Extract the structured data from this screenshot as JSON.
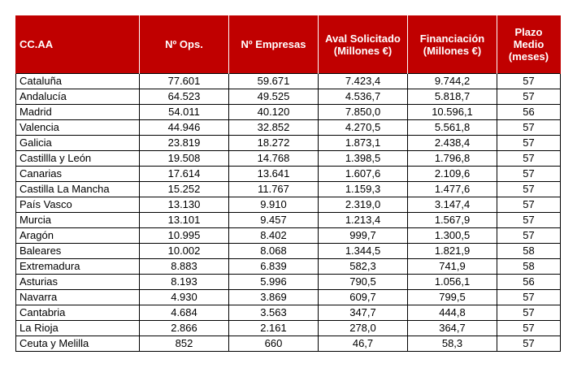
{
  "table": {
    "headers": [
      "CC.AA",
      "Nº Ops.",
      "Nº Empresas",
      "Aval Solicitado (Millones €)",
      "Financiación (Millones €)",
      "Plazo Medio (meses)"
    ],
    "rows": [
      [
        "Cataluña",
        "77.601",
        "59.671",
        "7.423,4",
        "9.744,2",
        "57"
      ],
      [
        "Andalucía",
        "64.523",
        "49.525",
        "4.536,7",
        "5.818,7",
        "57"
      ],
      [
        "Madrid",
        "54.011",
        "40.120",
        "7.850,0",
        "10.596,1",
        "56"
      ],
      [
        "Valencia",
        "44.946",
        "32.852",
        "4.270,5",
        "5.561,8",
        "57"
      ],
      [
        "Galicia",
        "23.819",
        "18.272",
        "1.873,1",
        "2.438,4",
        "57"
      ],
      [
        "Castillla y León",
        "19.508",
        "14.768",
        "1.398,5",
        "1.796,8",
        "57"
      ],
      [
        "Canarias",
        "17.614",
        "13.641",
        "1.607,6",
        "2.109,6",
        "57"
      ],
      [
        "Castilla La Mancha",
        "15.252",
        "11.767",
        "1.159,3",
        "1.477,6",
        "57"
      ],
      [
        "País Vasco",
        "13.130",
        "9.910",
        "2.319,0",
        "3.147,4",
        "57"
      ],
      [
        "Murcia",
        "13.101",
        "9.457",
        "1.213,4",
        "1.567,9",
        "57"
      ],
      [
        "Aragón",
        "10.995",
        "8.402",
        "999,7",
        "1.300,5",
        "57"
      ],
      [
        "Baleares",
        "10.002",
        "8.068",
        "1.344,5",
        "1.821,9",
        "58"
      ],
      [
        "Extremadura",
        "8.883",
        "6.839",
        "582,3",
        "741,9",
        "58"
      ],
      [
        "Asturias",
        "8.193",
        "5.996",
        "790,5",
        "1.056,1",
        "56"
      ],
      [
        "Navarra",
        "4.930",
        "3.869",
        "609,7",
        "799,5",
        "57"
      ],
      [
        "Cantabria",
        "4.684",
        "3.563",
        "347,7",
        "444,8",
        "57"
      ],
      [
        "La Rioja",
        "2.866",
        "2.161",
        "278,0",
        "364,7",
        "57"
      ],
      [
        "Ceuta y Melilla",
        "852",
        "660",
        "46,7",
        "58,3",
        "57"
      ]
    ]
  },
  "colors": {
    "header_background": "#c00000",
    "header_text": "#ffffff",
    "grid_lines": "#000000"
  }
}
